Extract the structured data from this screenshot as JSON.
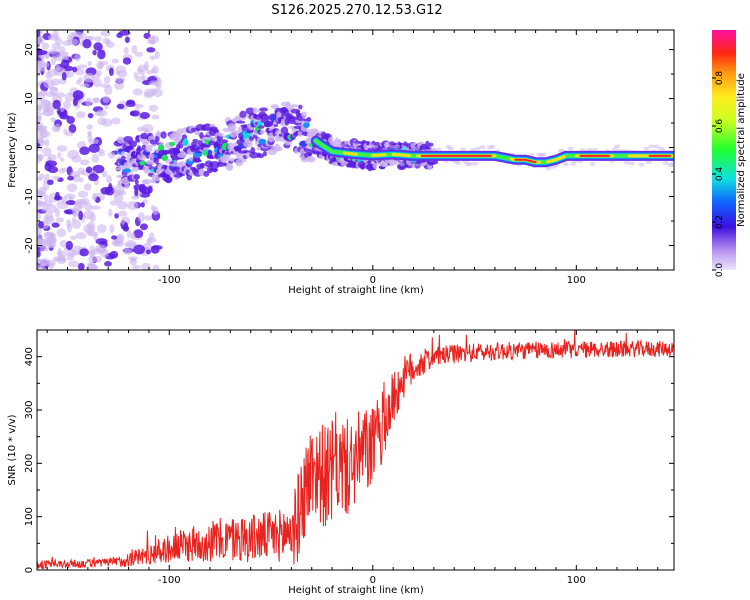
{
  "title": "S126.2025.270.12.53.G12",
  "colors": {
    "snr_line": "#e8221e",
    "spectrum_low": "#cdb4f0",
    "spectrum_mid": "#5a1ce0",
    "spectrum_high": "#ff1f1f"
  },
  "chart_data": [
    {
      "type": "heatmap",
      "name": "spectrogram",
      "xlabel": "Height of straight line (km)",
      "ylabel": "Frequency (Hz)",
      "xlim": [
        -165,
        148
      ],
      "ylim": [
        -25,
        24
      ],
      "xticks": [
        -100,
        0,
        100
      ],
      "yticks": [
        -20,
        -10,
        0,
        10,
        20
      ],
      "xtick_labels": [
        "-100",
        "0",
        "100"
      ],
      "ytick_labels": [
        "-20",
        "-10",
        "0",
        "10",
        "20"
      ],
      "ridge": {
        "x": [
          -125,
          -110,
          -95,
          -80,
          -70,
          -60,
          -50,
          -42,
          -35,
          -30,
          -25,
          -20,
          -10,
          0,
          10,
          20,
          40,
          60,
          70,
          75,
          80,
          85,
          90,
          95,
          100,
          120,
          140,
          148
        ],
        "y": [
          -3,
          -2.5,
          -1.5,
          -0.5,
          0.8,
          2.5,
          3.8,
          4.5,
          3.2,
          2.0,
          0.5,
          -0.8,
          -1.3,
          -1.6,
          -1.4,
          -1.7,
          -1.7,
          -1.7,
          -2.5,
          -2.5,
          -3.0,
          -3.0,
          -2.5,
          -1.7,
          -1.7,
          -1.7,
          -1.7,
          -1.7
        ]
      },
      "colorbar": {
        "label": "Normalized spectral amplitude",
        "range": [
          0.0,
          1.0
        ],
        "ticks": [
          0.0,
          0.2,
          0.4,
          0.6,
          0.8
        ],
        "tick_labels": [
          "0.0",
          "0.2",
          "0.4",
          "0.6",
          "0.8"
        ]
      }
    },
    {
      "type": "line",
      "name": "snr",
      "xlabel": "Height of straight line (km)",
      "ylabel": "SNR (10 * v/v)",
      "xlim": [
        -165,
        148
      ],
      "ylim": [
        0,
        450
      ],
      "xticks": [
        -100,
        0,
        100
      ],
      "yticks": [
        0,
        100,
        200,
        300,
        400
      ],
      "xtick_labels": [
        "-100",
        "0",
        "100"
      ],
      "ytick_labels": [
        "0",
        "100",
        "200",
        "300",
        "400"
      ],
      "series": [
        {
          "name": "SNR",
          "trend_x": [
            -165,
            -140,
            -125,
            -115,
            -100,
            -80,
            -60,
            -45,
            -38,
            -32,
            -28,
            -22,
            -18,
            -12,
            -5,
            0,
            5,
            10,
            15,
            20,
            25,
            30,
            40,
            60,
            80,
            100,
            120,
            148
          ],
          "trend_y": [
            10,
            12,
            15,
            25,
            40,
            55,
            60,
            65,
            80,
            170,
            190,
            170,
            200,
            190,
            220,
            230,
            270,
            320,
            360,
            380,
            390,
            400,
            405,
            410,
            412,
            413,
            414,
            415
          ],
          "noise_x": [
            -165,
            -130,
            -110,
            -80,
            -45,
            -35,
            -20,
            0,
            15,
            30,
            148
          ],
          "noise_amp": [
            8,
            8,
            20,
            40,
            50,
            90,
            100,
            80,
            40,
            18,
            15
          ]
        }
      ]
    }
  ]
}
